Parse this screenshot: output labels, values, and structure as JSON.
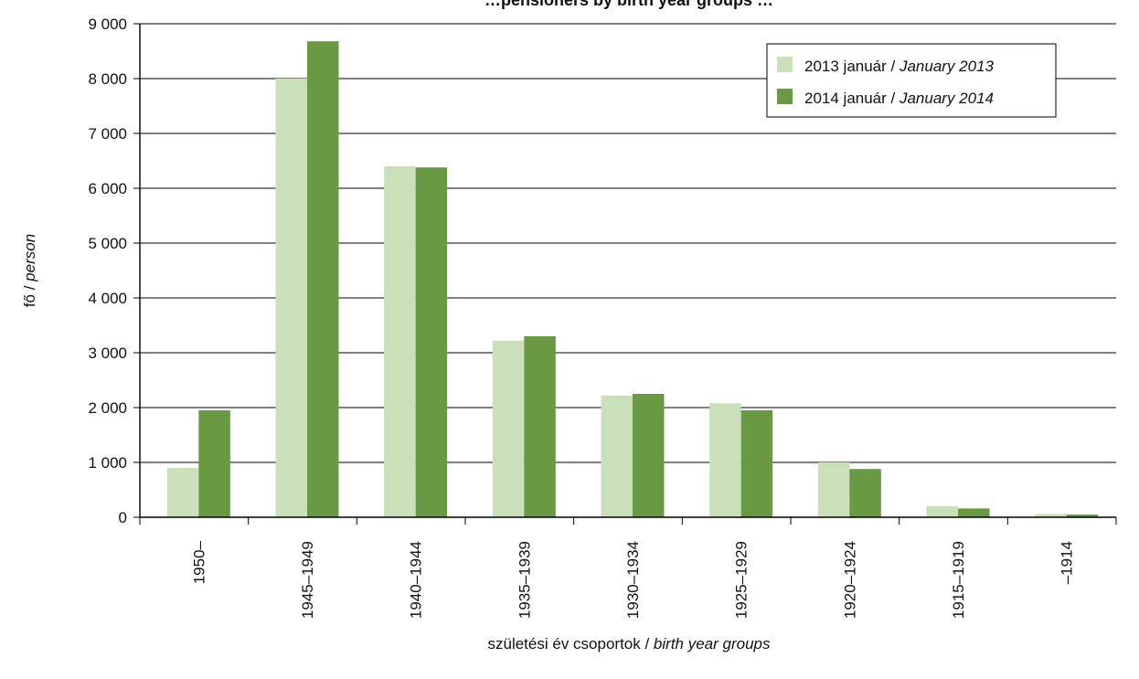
{
  "chart_data": {
    "type": "bar",
    "title": "…pensioners by birth year groups …",
    "categories": [
      "1950–",
      "1945–1949",
      "1940–1944",
      "1935–1939",
      "1930–1934",
      "1925–1929",
      "1920–1924",
      "1915–1919",
      "–1914"
    ],
    "series": [
      {
        "name": "2013 január / January 2013",
        "name_hu": "2013 január / ",
        "name_en": "January 2013",
        "color": "#c9e0bb",
        "values": [
          900,
          8000,
          6400,
          3220,
          2220,
          2080,
          1000,
          200,
          60
        ]
      },
      {
        "name": "2014 január / January 2014",
        "name_hu": "2014 január / ",
        "name_en": "January 2014",
        "color": "#6a9944",
        "values": [
          1950,
          8680,
          6380,
          3300,
          2250,
          1950,
          880,
          160,
          50
        ]
      }
    ],
    "xlabel_hu": "születési év csoportok / ",
    "xlabel_en": "birth year groups",
    "ylabel_hu": "fő / ",
    "ylabel_en": "person",
    "ylim": [
      0,
      9000
    ],
    "yticks": [
      0,
      1000,
      2000,
      3000,
      4000,
      5000,
      6000,
      7000,
      8000,
      9000
    ],
    "ytick_labels": [
      "0",
      "1 000",
      "2 000",
      "3 000",
      "4 000",
      "5 000",
      "6 000",
      "7 000",
      "8 000",
      "9 000"
    ],
    "grid": true,
    "legend_position": "top-right"
  }
}
